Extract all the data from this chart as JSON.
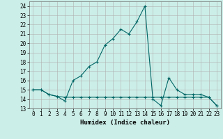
{
  "title": "",
  "xlabel": "Humidex (Indice chaleur)",
  "bg_color": "#cceee8",
  "grid_color": "#b0b0b0",
  "line_color": "#006666",
  "xlim": [
    -0.5,
    23.5
  ],
  "ylim": [
    13,
    24.5
  ],
  "yticks": [
    13,
    14,
    15,
    16,
    17,
    18,
    19,
    20,
    21,
    22,
    23,
    24
  ],
  "xticks": [
    0,
    1,
    2,
    3,
    4,
    5,
    6,
    7,
    8,
    9,
    10,
    11,
    12,
    13,
    14,
    15,
    16,
    17,
    18,
    19,
    20,
    21,
    22,
    23
  ],
  "line1_x": [
    0,
    1,
    2,
    3,
    4,
    5,
    6,
    7,
    8,
    9,
    10,
    11,
    12,
    13,
    14,
    15,
    16,
    17,
    18,
    19,
    20,
    21,
    22,
    23
  ],
  "line1_y": [
    15.0,
    15.0,
    14.5,
    14.3,
    13.8,
    16.0,
    16.5,
    17.5,
    18.0,
    19.8,
    20.5,
    21.5,
    21.0,
    22.3,
    24.0,
    14.0,
    13.3,
    16.3,
    15.0,
    14.5,
    14.5,
    14.5,
    14.2,
    13.3
  ],
  "line2_x": [
    0,
    1,
    2,
    3,
    4,
    5,
    6,
    7,
    8,
    9,
    10,
    11,
    12,
    13,
    14,
    15,
    16,
    17,
    18,
    19,
    20,
    21,
    22,
    23
  ],
  "line2_y": [
    15.0,
    15.0,
    14.5,
    14.3,
    14.2,
    14.2,
    14.2,
    14.2,
    14.2,
    14.2,
    14.2,
    14.2,
    14.2,
    14.2,
    14.2,
    14.2,
    14.2,
    14.2,
    14.2,
    14.2,
    14.2,
    14.2,
    14.2,
    13.3
  ],
  "tick_fontsize": 5.5,
  "xlabel_fontsize": 6.5,
  "linewidth": 0.8,
  "markersize": 3.5
}
